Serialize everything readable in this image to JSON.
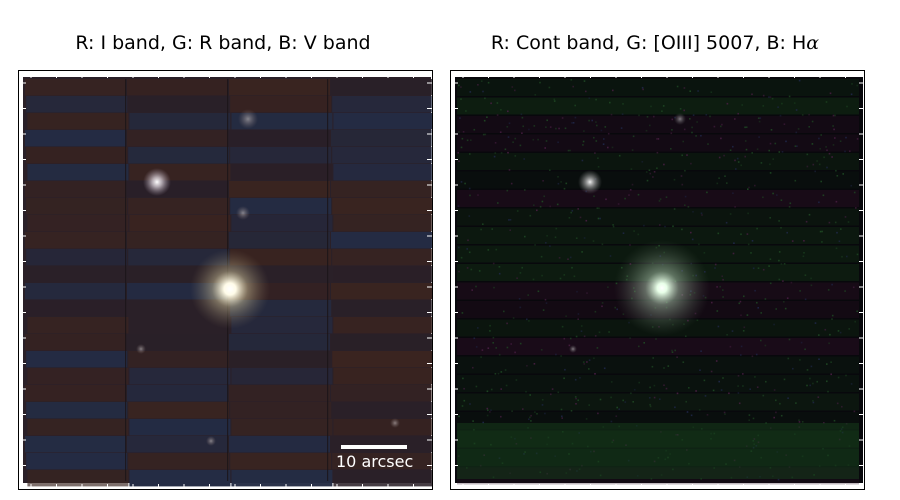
{
  "panels": [
    {
      "title_prefix": "R: I band, G: R band, B: V band",
      "title_alpha": "",
      "scalebar_label": "10 arcsec",
      "colors": {
        "background": "#2a2028",
        "tint_cool": "#242c44",
        "tint_warm": "#3a2420",
        "star": "#ffffff"
      }
    },
    {
      "title_prefix": "R: Cont band, G: [OIII] 5007, B: H",
      "title_alpha": "α",
      "colors": {
        "background": "#08080c",
        "tint_green": "#0f2412",
        "tint_magenta": "#2a1024",
        "star": "#e8ffe8"
      }
    }
  ]
}
